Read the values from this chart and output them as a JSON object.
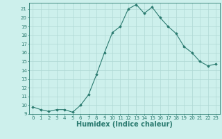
{
  "xlabel": "Humidex (Indice chaleur)",
  "x": [
    0,
    1,
    2,
    3,
    4,
    5,
    6,
    7,
    8,
    9,
    10,
    11,
    12,
    13,
    14,
    15,
    16,
    17,
    18,
    19,
    20,
    21,
    22,
    23
  ],
  "y": [
    9.8,
    9.5,
    9.3,
    9.5,
    9.5,
    9.2,
    10.0,
    11.2,
    13.5,
    16.0,
    18.3,
    19.0,
    21.0,
    21.5,
    20.5,
    21.2,
    20.0,
    19.0,
    18.2,
    16.7,
    16.0,
    15.0,
    14.5,
    14.7
  ],
  "line_color": "#2a7a6f",
  "marker": "D",
  "marker_size": 1.8,
  "bg_color": "#cdf0ec",
  "grid_color": "#b0d8d4",
  "ylim": [
    9,
    21.7
  ],
  "xlim": [
    -0.5,
    23.5
  ],
  "yticks": [
    9,
    10,
    11,
    12,
    13,
    14,
    15,
    16,
    17,
    18,
    19,
    20,
    21
  ],
  "xticks": [
    0,
    1,
    2,
    3,
    4,
    5,
    6,
    7,
    8,
    9,
    10,
    11,
    12,
    13,
    14,
    15,
    16,
    17,
    18,
    19,
    20,
    21,
    22,
    23
  ],
  "tick_fontsize": 5.0,
  "xlabel_fontsize": 7.0,
  "line_width": 0.8
}
